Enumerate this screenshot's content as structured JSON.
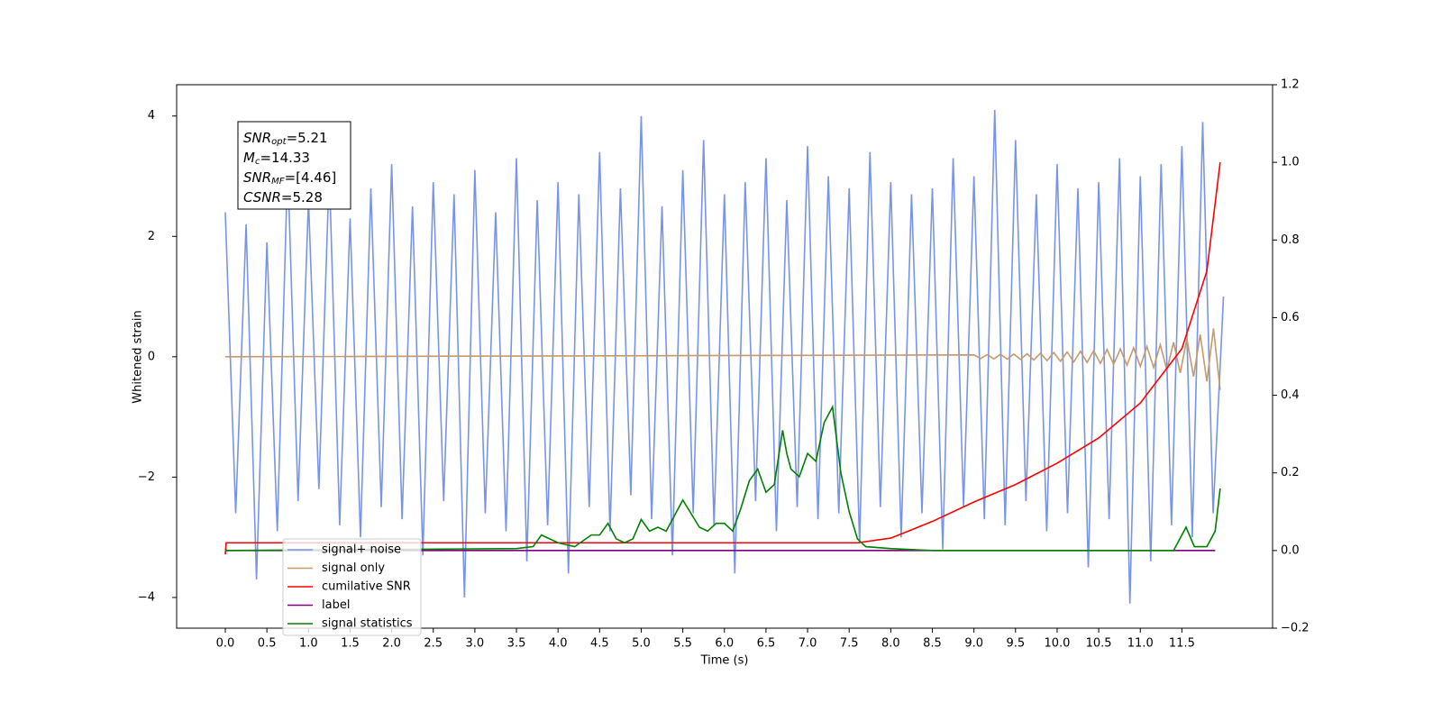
{
  "chart_data": {
    "type": "line",
    "xlabel": "Time (s)",
    "ylabel": "Whitened strain",
    "xlim": [
      -0.585,
      12.59
    ],
    "ylim": [
      -4.51,
      4.52
    ],
    "y2lim": [
      -0.2,
      1.2
    ],
    "xticks": [
      {
        "value": 0,
        "label": "0.0"
      },
      0.5,
      {
        "value": 1,
        "label": "1.0"
      },
      1.5,
      {
        "value": 2,
        "label": "2.0"
      },
      2.5,
      {
        "value": 3,
        "label": "3.0"
      },
      3.5,
      {
        "value": 4,
        "label": "4.0"
      },
      4.5,
      {
        "value": 5,
        "label": "5.0"
      },
      5.5,
      {
        "value": 6,
        "label": "6.0"
      },
      6.5,
      {
        "value": 7,
        "label": "7.0"
      },
      7.5,
      {
        "value": 8,
        "label": "8.0"
      },
      8.5,
      {
        "value": 9,
        "label": "9.0"
      },
      9.5,
      {
        "value": 10,
        "label": "10.0"
      },
      10.5,
      {
        "value": 11,
        "label": "11.0"
      },
      11.5
    ],
    "yticks": [
      {
        "value": -4,
        "label": "−4"
      },
      {
        "value": -2,
        "label": "−2"
      },
      0,
      2,
      4
    ],
    "y2ticks": [
      {
        "value": -0.2,
        "label": "−0.2"
      },
      {
        "value": 0,
        "label": "0.0"
      },
      0.2,
      0.4,
      0.6,
      0.8,
      {
        "value": 1,
        "label": "1.0"
      },
      1.2
    ],
    "annotations": [
      {
        "text": "SNR",
        "subscript": "opt",
        "rest": "=5.21"
      },
      {
        "text": "M",
        "subscript": "c",
        "rest": "=14.33"
      },
      {
        "text": "SNR",
        "subscript": "MF",
        "rest": "=[4.46]"
      },
      {
        "text": "CSNR",
        "rest": "=5.28"
      }
    ],
    "series": [
      {
        "name": "signal+ noise",
        "color": "#7794e8",
        "x": [
          0,
          0.125,
          0.25,
          0.375,
          0.5,
          0.625,
          0.75,
          0.875,
          1,
          1.125,
          1.25,
          1.375,
          1.5,
          1.625,
          1.75,
          1.875,
          2,
          2.125,
          2.25,
          2.375,
          2.5,
          2.625,
          2.75,
          2.875,
          3,
          3.125,
          3.25,
          3.375,
          3.5,
          3.625,
          3.75,
          3.875,
          4,
          4.125,
          4.25,
          4.375,
          4.5,
          4.625,
          4.75,
          4.875,
          5,
          5.125,
          5.25,
          5.375,
          5.5,
          5.625,
          5.75,
          5.875,
          6,
          6.125,
          6.25,
          6.375,
          6.5,
          6.625,
          6.75,
          6.875,
          7,
          7.125,
          7.25,
          7.375,
          7.5,
          7.625,
          7.75,
          7.875,
          8,
          8.125,
          8.25,
          8.375,
          8.5,
          8.625,
          8.75,
          8.875,
          9,
          9.125,
          9.25,
          9.375,
          9.5,
          9.625,
          9.75,
          9.875,
          10,
          10.125,
          10.25,
          10.375,
          10.5,
          10.625,
          10.75,
          10.875,
          11,
          11.125,
          11.25,
          11.375,
          11.5,
          11.625,
          11.75,
          11.875,
          12
        ],
        "values": [
          2.4,
          -2.6,
          2.2,
          -3.7,
          1.9,
          -2.9,
          3.2,
          -2.4,
          2.6,
          -2.2,
          3.1,
          -2.8,
          2.3,
          -3.0,
          2.8,
          -2.5,
          3.2,
          -2.7,
          2.5,
          -3.3,
          2.9,
          -2.4,
          2.7,
          -4.0,
          3.1,
          -2.6,
          2.4,
          -2.9,
          3.3,
          -3.4,
          2.6,
          -2.8,
          2.9,
          -3.6,
          2.7,
          -2.5,
          3.4,
          -2.9,
          2.8,
          -2.3,
          4.0,
          -2.7,
          2.5,
          -3.3,
          3.1,
          -2.6,
          3.6,
          -2.8,
          2.7,
          -3.6,
          2.9,
          -2.4,
          3.3,
          -2.9,
          2.6,
          -2.5,
          3.5,
          -2.7,
          3.0,
          -2.6,
          2.8,
          -3.1,
          3.4,
          -2.5,
          2.9,
          -3.0,
          2.7,
          -2.6,
          2.8,
          -3.2,
          3.3,
          -2.5,
          3.0,
          -2.7,
          4.1,
          -2.8,
          3.6,
          -2.4,
          2.7,
          -2.9,
          3.2,
          -2.6,
          2.8,
          -3.5,
          2.9,
          -2.7,
          3.3,
          -4.1,
          3.0,
          -3.4,
          3.2,
          -2.8,
          3.5,
          -3.0,
          3.9,
          -2.6,
          1.0
        ]
      },
      {
        "name": "signal only",
        "color": "#c49a6c",
        "x": [
          0,
          9.0,
          9.08,
          9.16,
          9.24,
          9.32,
          9.4,
          9.48,
          9.56,
          9.64,
          9.72,
          9.8,
          9.88,
          9.96,
          10.04,
          10.12,
          10.2,
          10.28,
          10.36,
          10.44,
          10.52,
          10.6,
          10.68,
          10.76,
          10.84,
          10.92,
          11.0,
          11.08,
          11.16,
          11.24,
          11.32,
          11.4,
          11.48,
          11.56,
          11.64,
          11.72,
          11.8,
          11.88,
          11.96
        ],
        "values": [
          0,
          0.03,
          -0.03,
          0.035,
          -0.035,
          0.04,
          -0.04,
          0.045,
          -0.045,
          0.05,
          -0.055,
          0.06,
          -0.065,
          0.07,
          -0.075,
          0.08,
          -0.085,
          0.09,
          -0.095,
          0.1,
          -0.11,
          0.12,
          -0.125,
          0.13,
          -0.14,
          0.15,
          -0.16,
          0.17,
          -0.18,
          0.2,
          -0.22,
          0.24,
          -0.27,
          0.3,
          -0.33,
          0.37,
          -0.41,
          0.47,
          -0.55
        ]
      },
      {
        "name": "cumilative SNR",
        "color": "#ff0000",
        "axis": "y2",
        "x": [
          0,
          0.01,
          7.6,
          8.0,
          8.5,
          9.0,
          9.5,
          10.0,
          10.5,
          11.0,
          11.5,
          11.8,
          11.96
        ],
        "values": [
          -0.01,
          0.02,
          0.02,
          0.032,
          0.075,
          0.125,
          0.17,
          0.225,
          0.29,
          0.38,
          0.52,
          0.72,
          1.0
        ]
      },
      {
        "name": "label",
        "color": "#800080",
        "axis": "y2",
        "x": [
          0,
          11.9
        ],
        "values": [
          0,
          0
        ]
      },
      {
        "name": "signal statistics",
        "color": "#008000",
        "axis": "y2",
        "x": [
          0,
          3.5,
          3.7,
          3.8,
          4.0,
          4.2,
          4.4,
          4.5,
          4.6,
          4.7,
          4.8,
          4.9,
          5.0,
          5.1,
          5.2,
          5.3,
          5.5,
          5.7,
          5.8,
          5.9,
          6.0,
          6.1,
          6.2,
          6.3,
          6.4,
          6.5,
          6.6,
          6.7,
          6.75,
          6.8,
          6.9,
          7.0,
          7.1,
          7.2,
          7.3,
          7.4,
          7.5,
          7.6,
          7.7,
          8.0,
          8.5,
          9.0,
          11.4,
          11.55,
          11.65,
          11.8,
          11.9,
          11.96
        ],
        "values": [
          0,
          0.005,
          0.01,
          0.04,
          0.02,
          0.01,
          0.04,
          0.04,
          0.07,
          0.03,
          0.02,
          0.03,
          0.08,
          0.05,
          0.06,
          0.05,
          0.13,
          0.06,
          0.05,
          0.07,
          0.07,
          0.05,
          0.11,
          0.18,
          0.21,
          0.15,
          0.17,
          0.31,
          0.25,
          0.21,
          0.19,
          0.25,
          0.23,
          0.33,
          0.37,
          0.2,
          0.1,
          0.03,
          0.01,
          0.005,
          0.0,
          0.0,
          0.0,
          0.06,
          0.01,
          0.01,
          0.05,
          0.16
        ]
      }
    ]
  }
}
